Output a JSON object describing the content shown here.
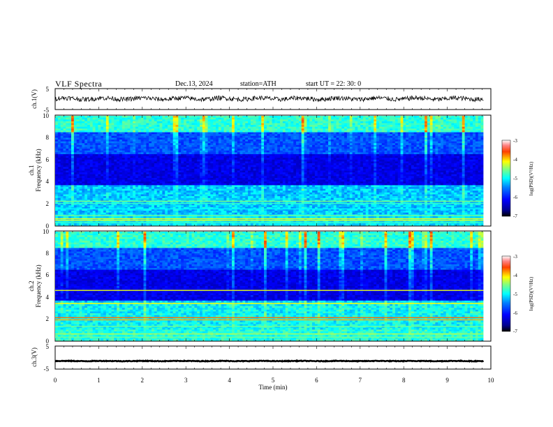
{
  "header": {
    "title": "VLF  Spectra",
    "date": "Dec.13, 2024",
    "station": "station=ATH",
    "start": "start  UT  =   22: 30: 0"
  },
  "chart_data": [
    {
      "type": "line",
      "panel": "ch1-waveform",
      "ylabel": "ch.1(V)",
      "ylim": [
        -5,
        5
      ],
      "yticks": [
        "5",
        "-5"
      ],
      "xlim": [
        0,
        10
      ],
      "series_color": "#000000",
      "baseline": 0.2
    },
    {
      "type": "heatmap",
      "panel": "ch1-spectrogram",
      "ylabel_lines": [
        "ch.1",
        "Frequency  (kHz)"
      ],
      "ylim": [
        0,
        10
      ],
      "yticks": [
        "0",
        "2",
        "4",
        "6",
        "8",
        "10"
      ],
      "xlim": [
        0,
        10
      ],
      "colorbar": {
        "label": "log(PSD)(V²/Hz)",
        "range": [
          -7,
          -3
        ],
        "ticks": [
          "-3",
          "-4",
          "-5",
          "-6",
          "-7"
        ]
      }
    },
    {
      "type": "heatmap",
      "panel": "ch2-spectrogram",
      "ylabel_lines": [
        "ch.2",
        "Frequency  (kHz)"
      ],
      "ylim": [
        0,
        10
      ],
      "yticks": [
        "0",
        "2",
        "4",
        "6",
        "8",
        "10"
      ],
      "xlim": [
        0,
        10
      ],
      "colorbar": {
        "label": "log(PSD)(V²/Hz)",
        "range": [
          -7,
          -3
        ],
        "ticks": [
          "-3",
          "-4",
          "-5",
          "-6",
          "-7"
        ]
      }
    },
    {
      "type": "line",
      "panel": "ch3-waveform",
      "ylabel": "ch.3(V)",
      "ylim": [
        -5,
        5
      ],
      "yticks": [
        "5",
        "-5"
      ],
      "xlim": [
        0,
        10
      ],
      "xlabel": "Time  (min)",
      "xticks": [
        "0",
        "1",
        "2",
        "3",
        "4",
        "5",
        "6",
        "7",
        "8",
        "9",
        "10"
      ],
      "series_color": "#000000",
      "baseline": -1.5
    }
  ]
}
